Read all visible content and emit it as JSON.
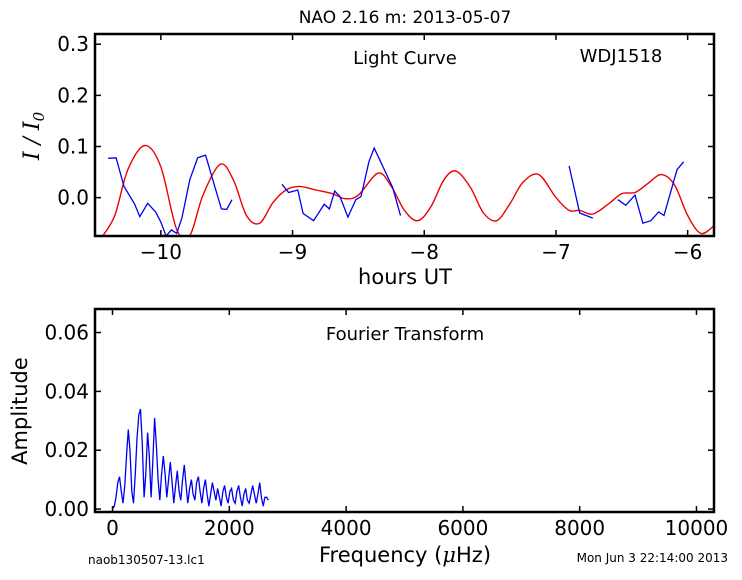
{
  "figure": {
    "title": "NAO 2.16 m:  2013-05-07",
    "footer_left": "naob130507-13.lc1",
    "footer_right": "Mon Jun  3 22:14:00 2013"
  },
  "chart_data": [
    {
      "type": "line",
      "annotation_left": "Light Curve",
      "annotation_right": "WDJ1518",
      "xlabel": "hours UT",
      "ylabel": "I / I0",
      "xlim": [
        -10.5,
        -5.8
      ],
      "ylim": [
        -0.075,
        0.32
      ],
      "xticks": [
        -10,
        -9,
        -8,
        -7,
        -6
      ],
      "xtick_labels": [
        "−10",
        "−9",
        "−8",
        "−7",
        "−6"
      ],
      "yticks": [
        0.0,
        0.1,
        0.2,
        0.3
      ],
      "ytick_labels": [
        "0.0",
        "0.1",
        "0.2",
        "0.3"
      ],
      "series": [
        {
          "color": "#0000ee",
          "segments": [
            [
              [
                -10.4,
                0.077
              ],
              [
                -10.34,
                0.078
              ],
              [
                -10.28,
                0.022
              ],
              [
                -10.2,
                -0.012
              ],
              [
                -10.16,
                -0.037
              ],
              [
                -10.1,
                -0.011
              ],
              [
                -10.04,
                -0.028
              ],
              [
                -10.0,
                -0.048
              ],
              [
                -9.96,
                -0.075
              ],
              [
                -9.92,
                -0.063
              ],
              [
                -9.88,
                -0.07
              ],
              [
                -9.84,
                -0.04
              ],
              [
                -9.78,
                0.035
              ],
              [
                -9.72,
                0.078
              ],
              [
                -9.66,
                0.083
              ],
              [
                -9.6,
                0.03
              ],
              [
                -9.54,
                -0.022
              ],
              [
                -9.5,
                -0.023
              ],
              [
                -9.46,
                -0.004
              ]
            ],
            [
              [
                -9.08,
                0.026
              ],
              [
                -9.03,
                0.01
              ],
              [
                -8.96,
                0.015
              ],
              [
                -8.92,
                -0.031
              ],
              [
                -8.84,
                -0.045
              ],
              [
                -8.76,
                -0.013
              ],
              [
                -8.72,
                -0.022
              ],
              [
                -8.68,
                0.013
              ],
              [
                -8.64,
                0.002
              ],
              [
                -8.58,
                -0.038
              ],
              [
                -8.52,
                -0.004
              ],
              [
                -8.48,
                0.002
              ],
              [
                -8.42,
                0.07
              ],
              [
                -8.38,
                0.097
              ],
              [
                -8.34,
                0.075
              ],
              [
                -8.24,
                0.02
              ],
              [
                -8.18,
                -0.035
              ]
            ],
            [
              [
                -6.9,
                0.062
              ],
              [
                -6.82,
                -0.03
              ],
              [
                -6.72,
                -0.04
              ]
            ],
            [
              [
                -6.53,
                -0.004
              ],
              [
                -6.47,
                -0.015
              ],
              [
                -6.4,
                0.005
              ],
              [
                -6.34,
                -0.05
              ],
              [
                -6.28,
                -0.045
              ],
              [
                -6.22,
                -0.028
              ],
              [
                -6.18,
                -0.035
              ],
              [
                -6.08,
                0.055
              ],
              [
                -6.03,
                0.07
              ]
            ]
          ]
        },
        {
          "color": "#ee0000",
          "points": [
            [
              -10.45,
              -0.078
            ],
            [
              -10.35,
              -0.035
            ],
            [
              -10.25,
              0.055
            ],
            [
              -10.12,
              0.102
            ],
            [
              -10.0,
              0.06
            ],
            [
              -9.88,
              -0.062
            ],
            [
              -9.78,
              -0.074
            ],
            [
              -9.68,
              0.005
            ],
            [
              -9.55,
              0.065
            ],
            [
              -9.45,
              0.035
            ],
            [
              -9.35,
              -0.035
            ],
            [
              -9.25,
              -0.05
            ],
            [
              -9.15,
              -0.01
            ],
            [
              -9.05,
              0.015
            ],
            [
              -8.95,
              0.022
            ],
            [
              -8.82,
              0.015
            ],
            [
              -8.7,
              0.008
            ],
            [
              -8.6,
              -0.002
            ],
            [
              -8.5,
              0.005
            ],
            [
              -8.35,
              0.048
            ],
            [
              -8.25,
              0.022
            ],
            [
              -8.15,
              -0.025
            ],
            [
              -8.05,
              -0.045
            ],
            [
              -7.95,
              -0.018
            ],
            [
              -7.85,
              0.035
            ],
            [
              -7.76,
              0.052
            ],
            [
              -7.65,
              0.02
            ],
            [
              -7.55,
              -0.03
            ],
            [
              -7.45,
              -0.045
            ],
            [
              -7.35,
              -0.012
            ],
            [
              -7.25,
              0.03
            ],
            [
              -7.13,
              0.045
            ],
            [
              -7.0,
              0.0
            ],
            [
              -6.9,
              -0.025
            ],
            [
              -6.82,
              -0.025
            ],
            [
              -6.72,
              -0.032
            ],
            [
              -6.6,
              -0.012
            ],
            [
              -6.5,
              0.008
            ],
            [
              -6.4,
              0.01
            ],
            [
              -6.3,
              0.028
            ],
            [
              -6.2,
              0.045
            ],
            [
              -6.1,
              0.025
            ],
            [
              -6.0,
              -0.035
            ],
            [
              -5.9,
              -0.07
            ],
            [
              -5.8,
              -0.055
            ]
          ]
        }
      ]
    },
    {
      "type": "line",
      "annotation": "Fourier Transform",
      "xlabel": "Frequency (μHz)",
      "ylabel": "Amplitude",
      "xlim": [
        -300,
        10300
      ],
      "ylim": [
        -0.001,
        0.068
      ],
      "xticks": [
        0,
        2000,
        4000,
        6000,
        8000,
        10000
      ],
      "xtick_labels": [
        "0",
        "2000",
        "4000",
        "6000",
        "8000",
        "10000"
      ],
      "yticks": [
        0.0,
        0.02,
        0.04,
        0.06
      ],
      "ytick_labels": [
        "0.00",
        "0.02",
        "0.04",
        "0.06"
      ],
      "series": [
        {
          "color": "#0000ee",
          "x_start": 0,
          "x_step": 30,
          "values": [
            0.0,
            0.001,
            0.004,
            0.009,
            0.011,
            0.006,
            0.002,
            0.008,
            0.018,
            0.027,
            0.02,
            0.006,
            0.002,
            0.012,
            0.024,
            0.032,
            0.034,
            0.022,
            0.004,
            0.012,
            0.026,
            0.018,
            0.004,
            0.016,
            0.031,
            0.022,
            0.01,
            0.003,
            0.012,
            0.018,
            0.012,
            0.004,
            0.01,
            0.016,
            0.009,
            0.002,
            0.008,
            0.013,
            0.006,
            0.003,
            0.01,
            0.015,
            0.008,
            0.002,
            0.007,
            0.01,
            0.005,
            0.003,
            0.009,
            0.011,
            0.006,
            0.002,
            0.007,
            0.01,
            0.005,
            0.001,
            0.005,
            0.009,
            0.006,
            0.003,
            0.007,
            0.004,
            0.001,
            0.006,
            0.008,
            0.004,
            0.002,
            0.006,
            0.007,
            0.003,
            0.002,
            0.006,
            0.008,
            0.004,
            0.001,
            0.005,
            0.007,
            0.003,
            0.002,
            0.005,
            0.008,
            0.005,
            0.002,
            0.005,
            0.009,
            0.004,
            0.001,
            0.004,
            0.004,
            0.003
          ]
        }
      ]
    }
  ]
}
